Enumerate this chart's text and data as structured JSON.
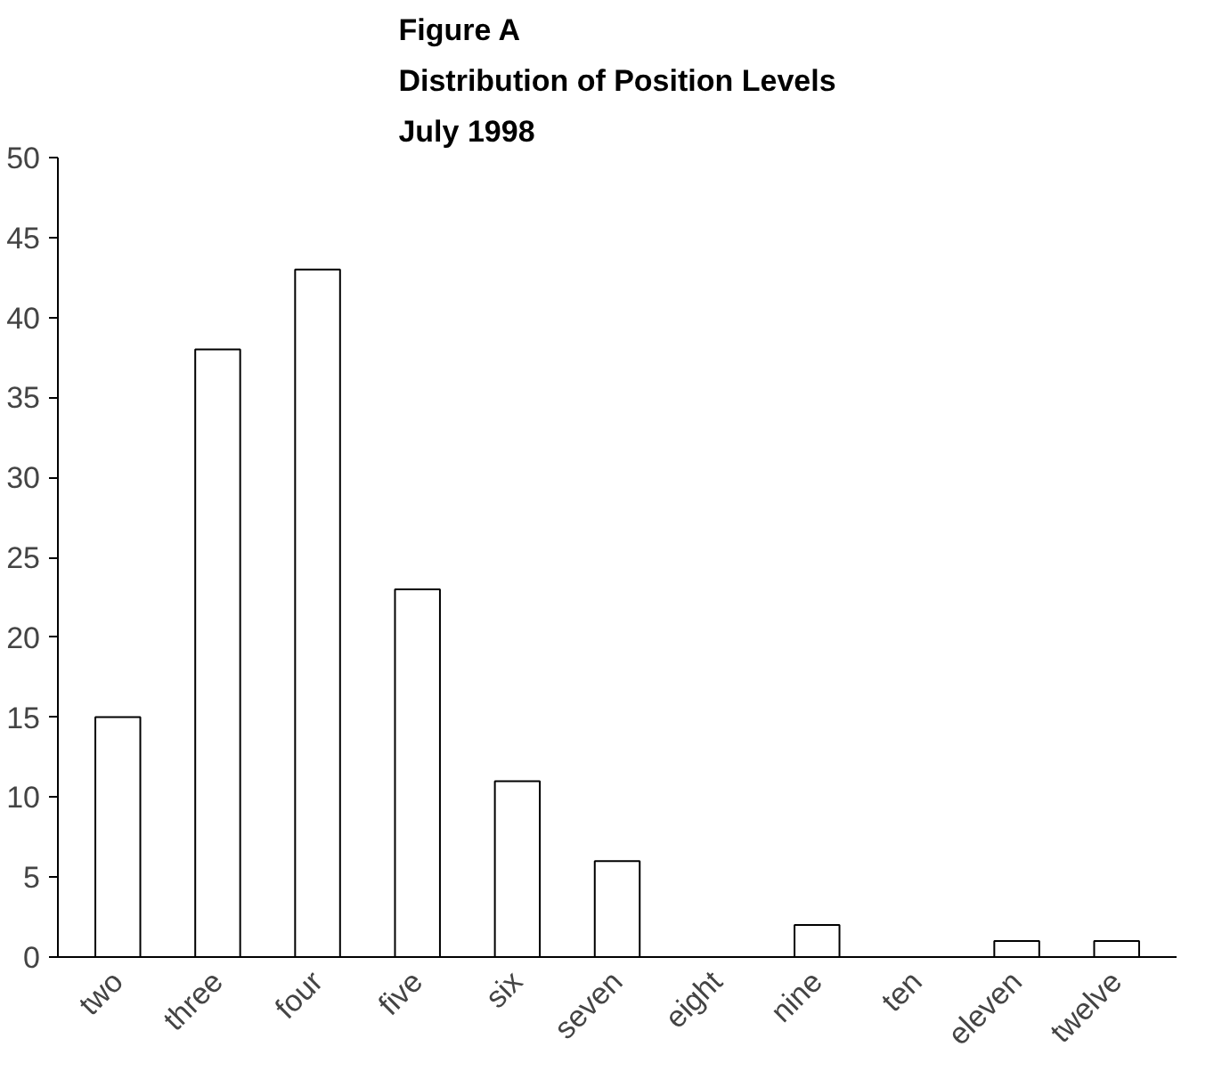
{
  "chart_data": {
    "type": "bar",
    "title": "Figure A\nDistribution of Position Levels\nJuly 1998",
    "categories": [
      "two",
      "three",
      "four",
      "five",
      "six",
      "seven",
      "eight",
      "nine",
      "ten",
      "eleven",
      "twelve"
    ],
    "values": [
      15,
      38,
      43,
      23,
      11,
      6,
      0,
      2,
      0,
      1,
      1
    ],
    "color": "#ffffff",
    "ylim": [
      0,
      50
    ],
    "yticks": [
      0,
      5,
      10,
      15,
      20,
      25,
      30,
      35,
      40,
      45,
      50
    ],
    "grid": false
  }
}
